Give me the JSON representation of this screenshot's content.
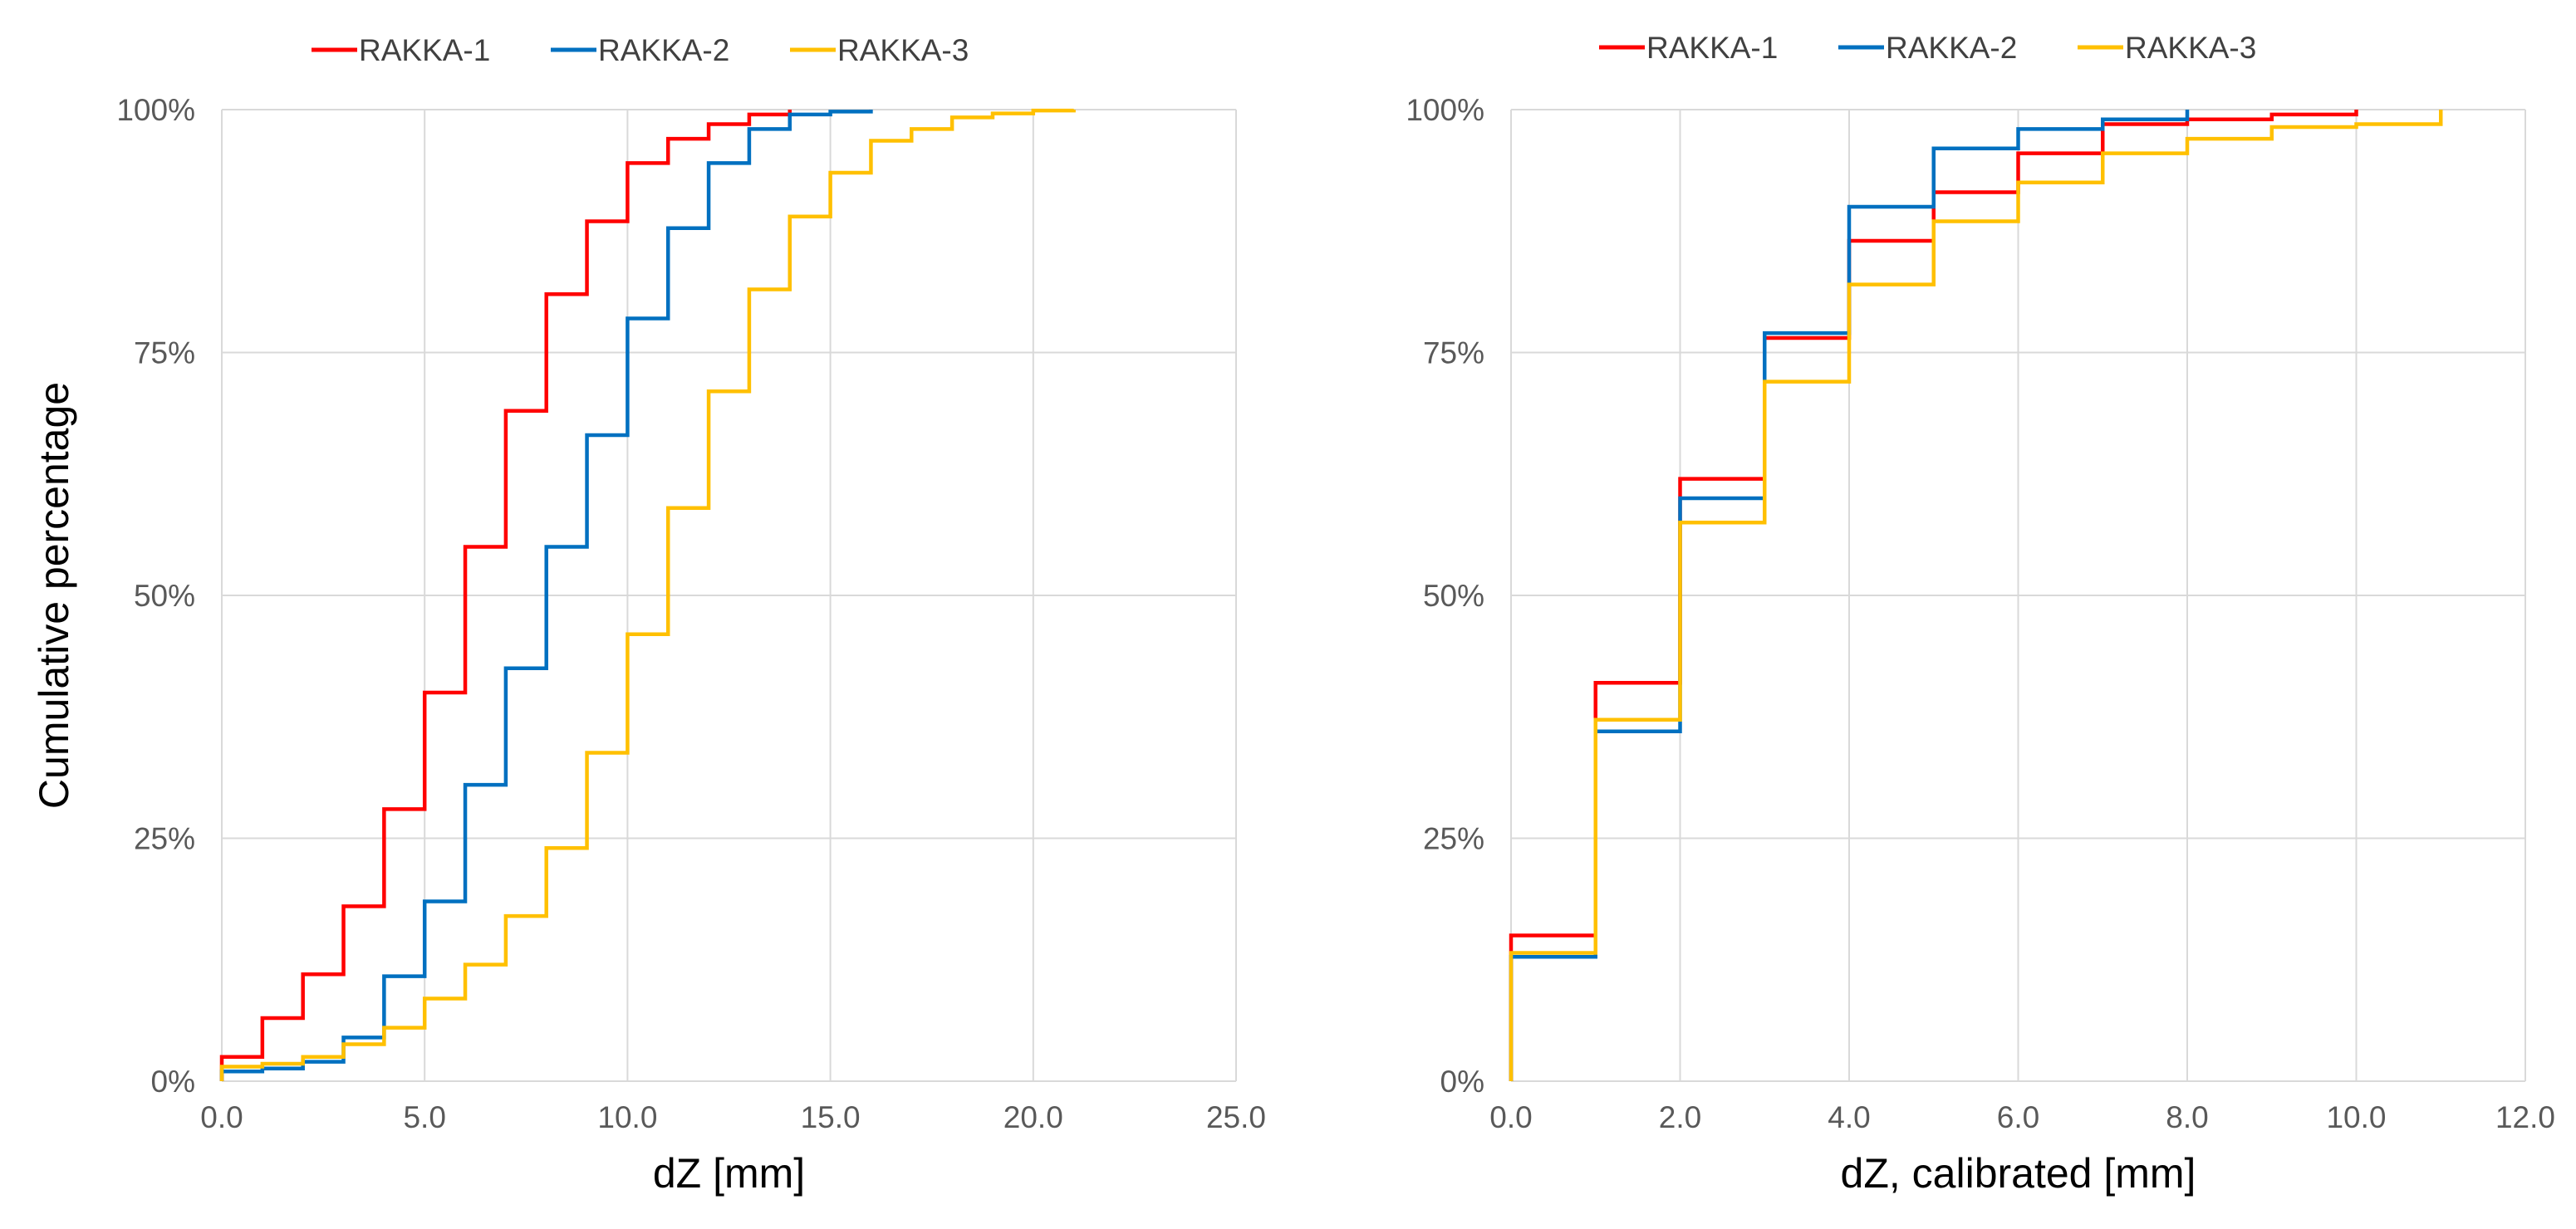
{
  "chart_data": [
    {
      "type": "line",
      "step": "post",
      "title": "",
      "xlabel": "dZ [mm]",
      "ylabel": "Cumulative percentage",
      "xlim": [
        0,
        25
      ],
      "ylim": [
        0,
        100
      ],
      "xticks": [
        0,
        5,
        10,
        15,
        20,
        25
      ],
      "xtick_labels": [
        "0.0",
        "5.0",
        "10.0",
        "15.0",
        "20.0",
        "25.0"
      ],
      "yticks": [
        0,
        25,
        50,
        75,
        100
      ],
      "ytick_labels": [
        "0%",
        "25%",
        "50%",
        "75%",
        "100%"
      ],
      "grid": true,
      "legend_position": "top",
      "series": [
        {
          "name": "RAKKA-1",
          "color": "#ff0000",
          "x": [
            0,
            1,
            2,
            3,
            4,
            5,
            6,
            7,
            8,
            9,
            10,
            11,
            12,
            13,
            14
          ],
          "y": [
            2.5,
            6.5,
            11,
            18,
            28,
            40,
            55,
            69,
            81,
            88.5,
            94.5,
            97,
            98.5,
            99.5,
            100
          ]
        },
        {
          "name": "RAKKA-2",
          "color": "#0070c0",
          "x": [
            0,
            1,
            2,
            3,
            4,
            5,
            6,
            7,
            8,
            9,
            10,
            11,
            12,
            13,
            14,
            15,
            16
          ],
          "y": [
            1,
            1.3,
            2,
            4.5,
            10.8,
            18.5,
            30.5,
            42.5,
            55,
            66.5,
            78.5,
            87.8,
            94.5,
            98,
            99.5,
            99.8,
            100
          ]
        },
        {
          "name": "RAKKA-3",
          "color": "#ffc000",
          "x": [
            0,
            1,
            2,
            3,
            4,
            5,
            6,
            7,
            8,
            9,
            10,
            11,
            12,
            13,
            14,
            15,
            16,
            17,
            18,
            19,
            20,
            21
          ],
          "y": [
            1.5,
            1.8,
            2.5,
            3.8,
            5.5,
            8.5,
            12,
            17,
            24,
            33.8,
            46,
            59,
            71,
            81.5,
            89,
            93.5,
            96.8,
            98,
            99.2,
            99.6,
            99.9,
            100
          ]
        }
      ]
    },
    {
      "type": "line",
      "step": "post",
      "title": "",
      "xlabel": "dZ, calibrated [mm]",
      "ylabel": "",
      "xlim": [
        0,
        12
      ],
      "ylim": [
        0,
        100
      ],
      "xticks": [
        0,
        2,
        4,
        6,
        8,
        10,
        12
      ],
      "xtick_labels": [
        "0.0",
        "2.0",
        "4.0",
        "6.0",
        "8.0",
        "10.0",
        "12.0"
      ],
      "yticks": [
        0,
        25,
        50,
        75,
        100
      ],
      "ytick_labels": [
        "0%",
        "25%",
        "50%",
        "75%",
        "100%"
      ],
      "grid": true,
      "legend_position": "top",
      "series": [
        {
          "name": "RAKKA-1",
          "color": "#ff0000",
          "x": [
            0,
            1,
            2,
            3,
            4,
            5,
            6,
            7,
            8,
            9,
            10
          ],
          "y": [
            15,
            41,
            62,
            76.5,
            86.5,
            91.5,
            95.5,
            98.5,
            99,
            99.5,
            100
          ]
        },
        {
          "name": "RAKKA-2",
          "color": "#0070c0",
          "x": [
            0,
            1,
            2,
            3,
            4,
            5,
            6,
            7,
            8
          ],
          "y": [
            12.8,
            36,
            60,
            77,
            90,
            96,
            98,
            99,
            100
          ]
        },
        {
          "name": "RAKKA-3",
          "color": "#ffc000",
          "x": [
            0,
            1,
            2,
            3,
            4,
            5,
            6,
            7,
            8,
            9,
            10,
            11
          ],
          "y": [
            13.2,
            37.2,
            57.5,
            72,
            82,
            88.5,
            92.5,
            95.5,
            97,
            98.2,
            98.5,
            100
          ]
        }
      ]
    }
  ]
}
